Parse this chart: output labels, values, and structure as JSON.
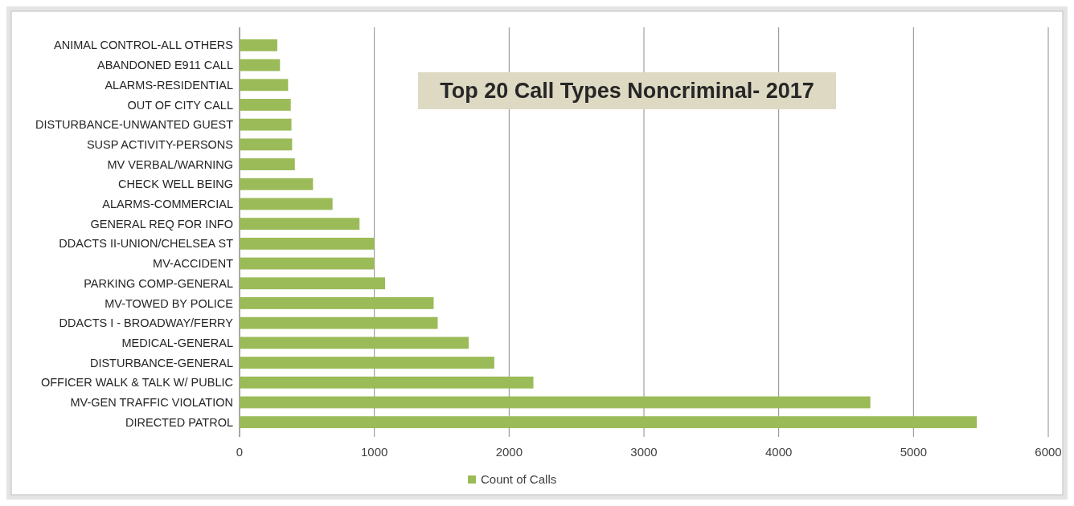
{
  "chart_data": {
    "type": "bar",
    "orientation": "horizontal",
    "title": "Top 20 Call Types Noncriminal- 2017",
    "categories": [
      "ANIMAL CONTROL-ALL OTHERS",
      "ABANDONED E911 CALL",
      "ALARMS-RESIDENTIAL",
      "OUT OF CITY CALL",
      "DISTURBANCE-UNWANTED GUEST",
      "SUSP ACTIVITY-PERSONS",
      "MV VERBAL/WARNING",
      "CHECK WELL BEING",
      "ALARMS-COMMERCIAL",
      "GENERAL REQ FOR INFO",
      "DDACTS II-UNION/CHELSEA ST",
      "MV-ACCIDENT",
      "PARKING COMP-GENERAL",
      "MV-TOWED BY POLICE",
      "DDACTS I - BROADWAY/FERRY",
      "MEDICAL-GENERAL",
      "DISTURBANCE-GENERAL",
      "OFFICER WALK & TALK W/ PUBLIC",
      "MV-GEN TRAFFIC VIOLATION",
      "DIRECTED PATROL"
    ],
    "series": [
      {
        "name": "Count of Calls",
        "color": "#9bbb59",
        "values": [
          280,
          300,
          360,
          380,
          385,
          390,
          410,
          545,
          690,
          890,
          1000,
          1000,
          1080,
          1440,
          1470,
          1700,
          1890,
          2180,
          4680,
          5470
        ]
      }
    ],
    "xlim": [
      0,
      6000
    ],
    "xticks": [
      0,
      1000,
      2000,
      3000,
      4000,
      5000,
      6000
    ],
    "grid": "x",
    "legend": "bottom"
  }
}
